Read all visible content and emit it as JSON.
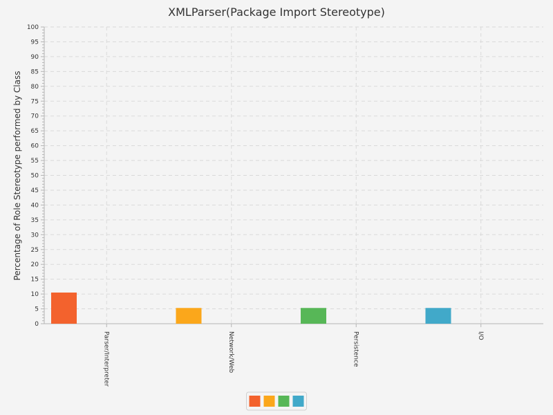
{
  "chart_data": {
    "type": "bar",
    "title": "XMLParser(Package Import Stereotype)",
    "ylabel": "Percentage of Role Stereotype performed by Class",
    "xlabel": "",
    "categories": [
      "Parser/Interpreter",
      "Network/Web",
      "Persistence",
      "I/O"
    ],
    "values": [
      10.5,
      5.3,
      5.3,
      5.3
    ],
    "colors": [
      "#f3622d",
      "#fba71b",
      "#57b757",
      "#41a9c9"
    ],
    "ylim": [
      0,
      100
    ],
    "ytick_step": 5,
    "grid": true,
    "legend_placement": "bottom-center"
  }
}
